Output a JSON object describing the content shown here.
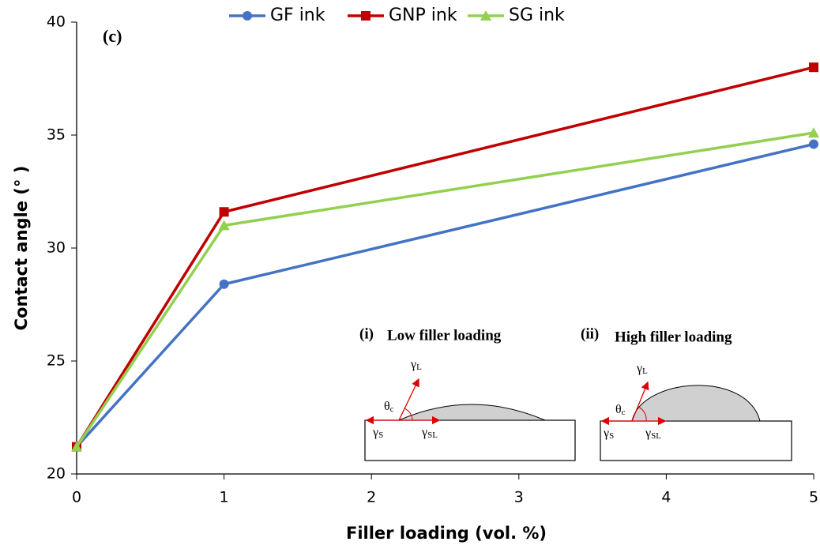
{
  "chart_data": {
    "type": "line",
    "x_label": "Filler loading (vol. %)",
    "y_label": "Contact angle (° )",
    "panel_label": "(c)",
    "x": [
      0,
      1,
      5
    ],
    "xlim": [
      0,
      5
    ],
    "xticks": [
      0,
      1,
      2,
      3,
      4,
      5
    ],
    "ylim": [
      20,
      40
    ],
    "yticks": [
      20,
      25,
      30,
      35,
      40
    ],
    "grid": false,
    "legend": "top",
    "series": [
      {
        "name": "GF ink",
        "color": "#4472c4",
        "marker": "circle",
        "values": [
          21.2,
          28.4,
          34.6
        ]
      },
      {
        "name": "GNP ink",
        "color": "#c00000",
        "marker": "square",
        "values": [
          21.2,
          31.6,
          38.0
        ]
      },
      {
        "name": "SG ink",
        "color": "#92d050",
        "marker": "triangle",
        "values": [
          21.2,
          31.0,
          35.1
        ]
      }
    ],
    "insets": [
      {
        "number": "(i)",
        "title": "Low filler loading",
        "gamma_l": {
          "symbol": "γ",
          "sub": "L"
        },
        "theta": {
          "symbol": "θ",
          "sub": "c"
        },
        "gamma_s": {
          "symbol": "γ",
          "sub": "S"
        },
        "gamma_sl": {
          "symbol": "γ",
          "sub": "SL"
        }
      },
      {
        "number": "(ii)",
        "title": "High filler loading",
        "gamma_l": {
          "symbol": "γ",
          "sub": "L"
        },
        "theta": {
          "symbol": "θ",
          "sub": "c"
        },
        "gamma_s": {
          "symbol": "γ",
          "sub": "S"
        },
        "gamma_sl": {
          "symbol": "γ",
          "sub": "SL"
        }
      }
    ]
  }
}
